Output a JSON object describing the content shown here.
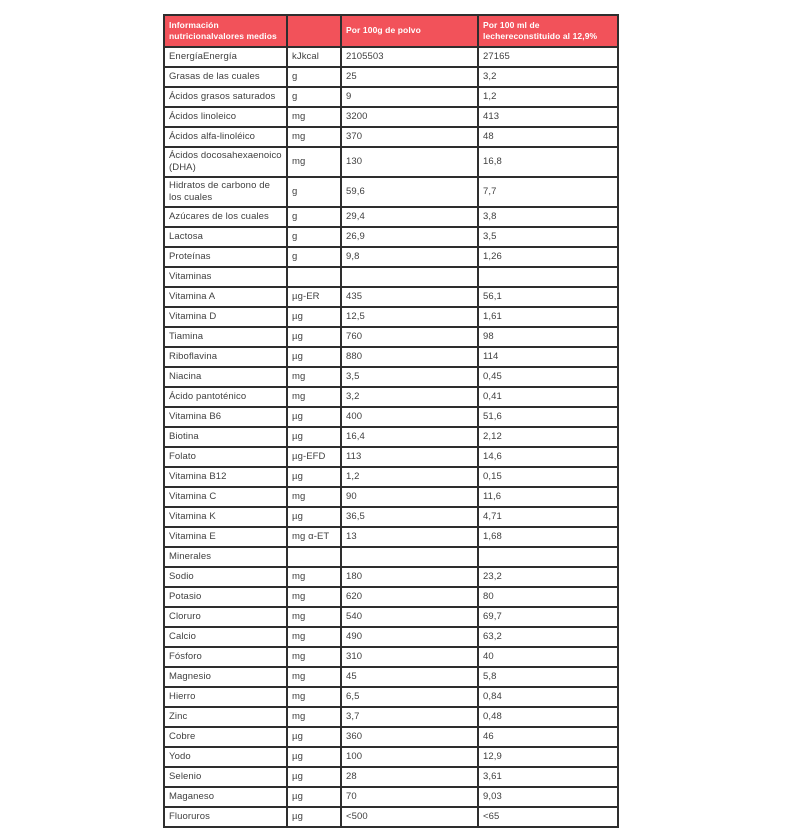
{
  "table": {
    "accent_color": "#f2525a",
    "border_color": "#2e2e2e",
    "header": {
      "col1": "Información nutricionalvalores medios",
      "col2": "",
      "col3": "Por 100g de polvo",
      "col4": "Por 100 ml de lechereconstituido al 12,9%"
    },
    "rows": [
      {
        "name": "EnergíaEnergía",
        "unit": "kJkcal",
        "per100g": "2105503",
        "per100ml": "27165"
      },
      {
        "name": "Grasas de las cuales",
        "unit": "g",
        "per100g": "25",
        "per100ml": "3,2"
      },
      {
        "name": "Ácidos grasos saturados",
        "unit": "g",
        "per100g": "9",
        "per100ml": "1,2"
      },
      {
        "name": "Ácidos linoleico",
        "unit": "mg",
        "per100g": "3200",
        "per100ml": "413"
      },
      {
        "name": "Ácidos alfa-linoléico",
        "unit": "mg",
        "per100g": "370",
        "per100ml": "48"
      },
      {
        "name": "Ácidos docosahexaenoico (DHA)",
        "unit": "mg",
        "per100g": "130",
        "per100ml": "16,8"
      },
      {
        "name": "Hidratos de carbono de los cuales",
        "unit": "g",
        "per100g": "59,6",
        "per100ml": "7,7"
      },
      {
        "name": "Azúcares de los cuales",
        "unit": "g",
        "per100g": "29,4",
        "per100ml": "3,8"
      },
      {
        "name": "Lactosa",
        "unit": "g",
        "per100g": "26,9",
        "per100ml": "3,5"
      },
      {
        "name": "Proteínas",
        "unit": "g",
        "per100g": "9,8",
        "per100ml": "1,26"
      },
      {
        "name": "Vitaminas",
        "unit": "",
        "per100g": "",
        "per100ml": "",
        "section": true
      },
      {
        "name": "Vitamina A",
        "unit": "µg-ER",
        "per100g": "435",
        "per100ml": "56,1"
      },
      {
        "name": "Vitamina D",
        "unit": "µg",
        "per100g": "12,5",
        "per100ml": "1,61"
      },
      {
        "name": "Tiamina",
        "unit": "µg",
        "per100g": "760",
        "per100ml": "98"
      },
      {
        "name": "Riboflavina",
        "unit": "µg",
        "per100g": "880",
        "per100ml": "114"
      },
      {
        "name": "Niacina",
        "unit": "mg",
        "per100g": "3,5",
        "per100ml": "0,45"
      },
      {
        "name": "Ácido pantoténico",
        "unit": "mg",
        "per100g": "3,2",
        "per100ml": "0,41"
      },
      {
        "name": "Vitamina B6",
        "unit": "µg",
        "per100g": "400",
        "per100ml": "51,6"
      },
      {
        "name": "Biotina",
        "unit": "µg",
        "per100g": "16,4",
        "per100ml": "2,12"
      },
      {
        "name": "Folato",
        "unit": "µg-EFD",
        "per100g": "113",
        "per100ml": "14,6"
      },
      {
        "name": "Vitamina B12",
        "unit": "µg",
        "per100g": "1,2",
        "per100ml": "0,15"
      },
      {
        "name": "Vitamina C",
        "unit": "mg",
        "per100g": "90",
        "per100ml": "11,6"
      },
      {
        "name": "Vitamina K",
        "unit": "µg",
        "per100g": "36,5",
        "per100ml": "4,71"
      },
      {
        "name": "Vitamina E",
        "unit": "mg α-ET",
        "per100g": "13",
        "per100ml": "1,68"
      },
      {
        "name": "Minerales",
        "unit": "",
        "per100g": "",
        "per100ml": "",
        "section": true
      },
      {
        "name": "Sodio",
        "unit": "mg",
        "per100g": "180",
        "per100ml": "23,2"
      },
      {
        "name": "Potasio",
        "unit": "mg",
        "per100g": "620",
        "per100ml": "80"
      },
      {
        "name": "Cloruro",
        "unit": "mg",
        "per100g": "540",
        "per100ml": "69,7"
      },
      {
        "name": "Calcio",
        "unit": "mg",
        "per100g": "490",
        "per100ml": "63,2"
      },
      {
        "name": "Fósforo",
        "unit": "mg",
        "per100g": "310",
        "per100ml": "40"
      },
      {
        "name": "Magnesio",
        "unit": "mg",
        "per100g": "45",
        "per100ml": "5,8"
      },
      {
        "name": "Hierro",
        "unit": "mg",
        "per100g": "6,5",
        "per100ml": "0,84"
      },
      {
        "name": "Zinc",
        "unit": "mg",
        "per100g": "3,7",
        "per100ml": "0,48"
      },
      {
        "name": "Cobre",
        "unit": "µg",
        "per100g": "360",
        "per100ml": "46"
      },
      {
        "name": "Yodo",
        "unit": "µg",
        "per100g": "100",
        "per100ml": "12,9"
      },
      {
        "name": "Selenio",
        "unit": "µg",
        "per100g": "28",
        "per100ml": "3,61"
      },
      {
        "name": "Maganeso",
        "unit": "µg",
        "per100g": "70",
        "per100ml": "9,03"
      },
      {
        "name": "Fluoruros",
        "unit": "µg",
        "per100g": "<500",
        "per100ml": "<65"
      }
    ]
  }
}
